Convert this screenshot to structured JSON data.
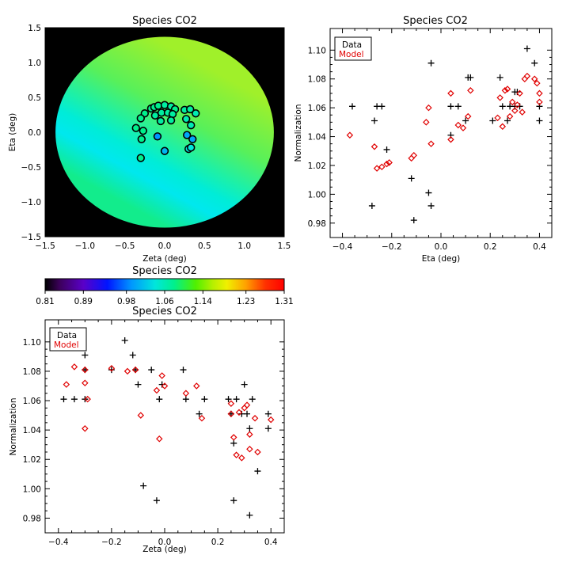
{
  "colors": {
    "data": "#000000",
    "model": "#e00000",
    "frame": "#000000",
    "background": "#000000"
  },
  "chart_data": [
    {
      "id": "map",
      "type": "heatmap",
      "title": "Species CO2",
      "xlabel": "Zeta (deg)",
      "ylabel": "Eta (deg)",
      "xlim": [
        -1.5,
        1.5
      ],
      "ylim": [
        -1.5,
        1.5
      ],
      "xticks": [
        -1.5,
        -1.0,
        -0.5,
        0.0,
        0.5,
        1.0,
        1.5
      ],
      "yticks": [
        -1.5,
        -1.0,
        -0.5,
        0.0,
        0.5,
        1.0,
        1.5
      ],
      "xtick_labels": [
        "−1.5",
        "−1.0",
        "−0.5",
        "0.0",
        "0.5",
        "1.0",
        "1.5"
      ],
      "ytick_labels": [
        "−1.5",
        "−1.0",
        "−0.5",
        "0.0",
        "0.5",
        "1.0",
        "1.5"
      ],
      "field_radius": 1.37,
      "field_value_range": [
        0.98,
        1.14
      ],
      "stations": [
        {
          "zeta": -0.17,
          "eta": 0.34,
          "value": 1.08
        },
        {
          "zeta": -0.13,
          "eta": 0.36,
          "value": 1.08
        },
        {
          "zeta": -0.08,
          "eta": 0.38,
          "value": 1.08
        },
        {
          "zeta": 0.0,
          "eta": 0.39,
          "value": 1.07
        },
        {
          "zeta": 0.08,
          "eta": 0.37,
          "value": 1.07
        },
        {
          "zeta": 0.13,
          "eta": 0.33,
          "value": 1.08
        },
        {
          "zeta": -0.12,
          "eta": 0.24,
          "value": 1.07
        },
        {
          "zeta": -0.04,
          "eta": 0.28,
          "value": 1.07
        },
        {
          "zeta": 0.04,
          "eta": 0.28,
          "value": 1.07
        },
        {
          "zeta": 0.1,
          "eta": 0.26,
          "value": 1.07
        },
        {
          "zeta": 0.25,
          "eta": 0.32,
          "value": 1.07
        },
        {
          "zeta": 0.32,
          "eta": 0.33,
          "value": 1.07
        },
        {
          "zeta": 0.39,
          "eta": 0.27,
          "value": 1.06
        },
        {
          "zeta": -0.25,
          "eta": 0.27,
          "value": 1.08
        },
        {
          "zeta": -0.3,
          "eta": 0.2,
          "value": 1.08
        },
        {
          "zeta": -0.36,
          "eta": 0.06,
          "value": 1.08
        },
        {
          "zeta": -0.27,
          "eta": 0.02,
          "value": 1.08
        },
        {
          "zeta": -0.29,
          "eta": -0.1,
          "value": 1.08
        },
        {
          "zeta": 0.27,
          "eta": 0.19,
          "value": 1.06
        },
        {
          "zeta": 0.33,
          "eta": 0.1,
          "value": 1.06
        },
        {
          "zeta": -0.05,
          "eta": 0.16,
          "value": 1.07
        },
        {
          "zeta": 0.08,
          "eta": 0.17,
          "value": 1.07
        },
        {
          "zeta": -0.3,
          "eta": -0.37,
          "value": 1.08
        },
        {
          "zeta": -0.09,
          "eta": -0.06,
          "value": 0.99
        },
        {
          "zeta": 0.0,
          "eta": -0.27,
          "value": 1.01
        },
        {
          "zeta": 0.28,
          "eta": -0.04,
          "value": 1.0
        },
        {
          "zeta": 0.35,
          "eta": -0.1,
          "value": 1.0
        },
        {
          "zeta": 0.3,
          "eta": -0.24,
          "value": 1.04
        },
        {
          "zeta": 0.33,
          "eta": -0.22,
          "value": 1.04
        }
      ]
    },
    {
      "id": "colorbar",
      "type": "colorbar",
      "title": "Species CO2",
      "range": [
        0.81,
        1.31
      ],
      "tick_values": [
        0.81,
        0.89,
        0.98,
        1.06,
        1.14,
        1.23,
        1.31
      ],
      "tick_labels": [
        "0.81",
        "0.89",
        "0.98",
        "1.06",
        "1.14",
        "1.23",
        "1.31"
      ]
    },
    {
      "id": "eta",
      "type": "scatter",
      "title": "Species CO2",
      "xlabel": "Eta (deg)",
      "ylabel": "Normalization",
      "xlim": [
        -0.45,
        0.45
      ],
      "ylim": [
        0.97,
        1.115
      ],
      "xticks": [
        -0.4,
        -0.2,
        0.0,
        0.2,
        0.4
      ],
      "xtick_labels": [
        "−0.4",
        "−0.2",
        "0.0",
        "0.2",
        "0.4"
      ],
      "yticks": [
        0.98,
        1.0,
        1.02,
        1.04,
        1.06,
        1.08,
        1.1
      ],
      "ytick_labels": [
        "0.98",
        "1.00",
        "1.02",
        "1.04",
        "1.06",
        "1.08",
        "1.10"
      ],
      "legend": {
        "position": "top-left",
        "entries": [
          "Data",
          "Model"
        ]
      },
      "series": [
        {
          "name": "Data",
          "marker": "plus",
          "x": [
            -0.36,
            -0.27,
            -0.26,
            -0.24,
            -0.22,
            -0.28,
            -0.12,
            -0.11,
            -0.05,
            -0.04,
            -0.04,
            0.04,
            0.04,
            0.07,
            0.1,
            0.11,
            0.12,
            0.21,
            0.24,
            0.25,
            0.27,
            0.28,
            0.3,
            0.3,
            0.31,
            0.32,
            0.35,
            0.38,
            0.4,
            0.4
          ],
          "y": [
            1.061,
            1.051,
            1.061,
            1.061,
            1.031,
            0.992,
            1.011,
            0.982,
            1.001,
            1.091,
            0.992,
            1.061,
            1.041,
            1.061,
            1.051,
            1.081,
            1.081,
            1.051,
            1.081,
            1.061,
            1.051,
            1.061,
            1.061,
            1.071,
            1.071,
            1.061,
            1.101,
            1.091,
            1.061,
            1.051
          ]
        },
        {
          "name": "Model",
          "marker": "diamond",
          "x": [
            -0.37,
            -0.27,
            -0.26,
            -0.24,
            -0.22,
            -0.21,
            -0.12,
            -0.11,
            -0.06,
            -0.05,
            -0.04,
            0.04,
            0.04,
            0.07,
            0.09,
            0.11,
            0.12,
            0.23,
            0.24,
            0.25,
            0.26,
            0.27,
            0.28,
            0.29,
            0.3,
            0.31,
            0.32,
            0.33,
            0.34,
            0.35,
            0.38,
            0.39,
            0.4,
            0.4
          ],
          "y": [
            1.041,
            1.033,
            1.018,
            1.019,
            1.021,
            1.022,
            1.025,
            1.027,
            1.05,
            1.06,
            1.035,
            1.07,
            1.038,
            1.048,
            1.046,
            1.054,
            1.072,
            1.053,
            1.067,
            1.047,
            1.072,
            1.073,
            1.054,
            1.064,
            1.058,
            1.062,
            1.07,
            1.057,
            1.08,
            1.082,
            1.08,
            1.077,
            1.07,
            1.064
          ]
        }
      ]
    },
    {
      "id": "zeta",
      "type": "scatter",
      "title": "Species CO2",
      "xlabel": "Zeta (deg)",
      "ylabel": "Normalization",
      "xlim": [
        -0.45,
        0.45
      ],
      "ylim": [
        0.97,
        1.115
      ],
      "xticks": [
        -0.4,
        -0.2,
        0.0,
        0.2,
        0.4
      ],
      "xtick_labels": [
        "−0.4",
        "−0.2",
        "0.0",
        "0.2",
        "0.4"
      ],
      "yticks": [
        0.98,
        1.0,
        1.02,
        1.04,
        1.06,
        1.08,
        1.1
      ],
      "ytick_labels": [
        "0.98",
        "1.00",
        "1.02",
        "1.04",
        "1.06",
        "1.08",
        "1.10"
      ],
      "legend": {
        "position": "top-left",
        "entries": [
          "Data",
          "Model"
        ]
      },
      "series": [
        {
          "name": "Data",
          "marker": "plus",
          "x": [
            -0.3,
            -0.38,
            -0.34,
            -0.3,
            -0.3,
            -0.2,
            -0.15,
            -0.12,
            -0.1,
            -0.11,
            -0.08,
            -0.05,
            -0.03,
            -0.02,
            -0.01,
            0.07,
            0.08,
            0.13,
            0.15,
            0.24,
            0.25,
            0.26,
            0.26,
            0.27,
            0.29,
            0.3,
            0.31,
            0.32,
            0.32,
            0.33,
            0.35,
            0.39,
            0.39
          ],
          "y": [
            1.091,
            1.061,
            1.061,
            1.081,
            1.061,
            1.081,
            1.101,
            1.091,
            1.071,
            1.081,
            1.002,
            1.081,
            0.992,
            1.061,
            1.071,
            1.081,
            1.061,
            1.051,
            1.061,
            1.061,
            1.051,
            0.992,
            1.031,
            1.061,
            1.051,
            1.071,
            1.051,
            0.982,
            1.041,
            1.061,
            1.012,
            1.051,
            1.041
          ]
        },
        {
          "name": "Model",
          "marker": "diamond",
          "x": [
            -0.37,
            -0.34,
            -0.3,
            -0.3,
            -0.29,
            -0.3,
            -0.2,
            -0.14,
            -0.11,
            -0.09,
            -0.03,
            -0.02,
            -0.01,
            0.0,
            0.08,
            0.12,
            0.14,
            0.25,
            0.25,
            0.26,
            0.27,
            0.28,
            0.29,
            0.3,
            0.31,
            0.32,
            0.32,
            0.34,
            0.35,
            0.4
          ],
          "y": [
            1.071,
            1.083,
            1.081,
            1.072,
            1.061,
            1.041,
            1.082,
            1.08,
            1.081,
            1.05,
            1.067,
            1.034,
            1.077,
            1.07,
            1.065,
            1.07,
            1.048,
            1.058,
            1.051,
            1.035,
            1.023,
            1.052,
            1.021,
            1.055,
            1.057,
            1.037,
            1.027,
            1.048,
            1.025,
            1.047
          ]
        }
      ]
    }
  ]
}
